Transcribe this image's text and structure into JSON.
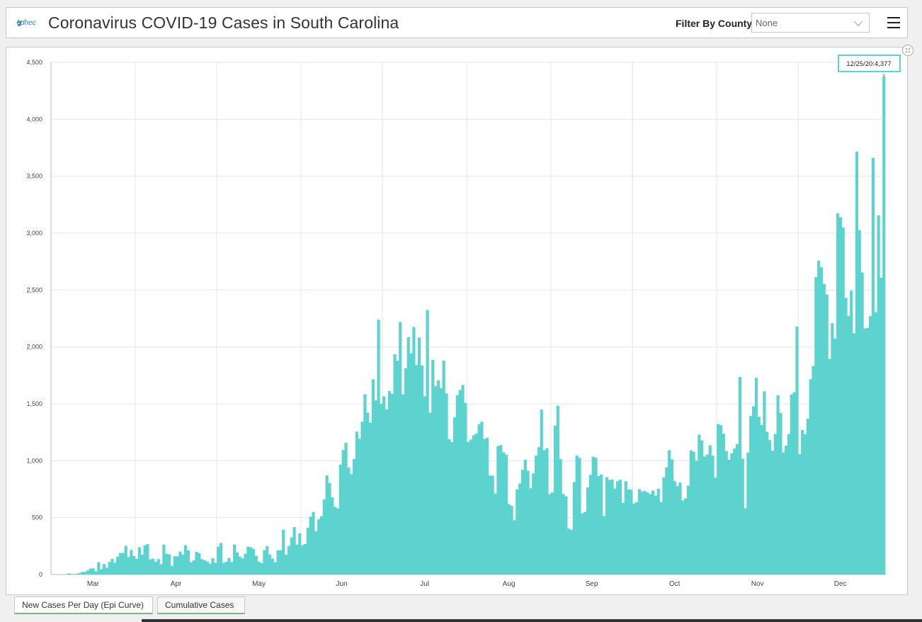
{
  "header": {
    "logo_text": "dhec",
    "title": "Coronavirus COVID-19 Cases in South Carolina",
    "filter_label": "Filter By County",
    "filter_value": "None"
  },
  "tabs": [
    {
      "label": "New Cases Per Day (Epi Curve)",
      "active": true
    },
    {
      "label": "Cumulative Cases",
      "active": false
    }
  ],
  "colors": {
    "bar": "#5dd3cf",
    "tooltip_border": "#5dd3cf",
    "grid": "#e6e6e6"
  },
  "icons": {
    "menu": "hamburger-menu-icon",
    "collapse": "collapse-icon",
    "dropdown": "chevron-down-icon"
  },
  "tooltip": "12/25/20:4,377",
  "chart_data": {
    "type": "bar",
    "title": "",
    "xlabel": "",
    "ylabel": "",
    "ylim": [
      0,
      4500
    ],
    "yticks": [
      "0",
      "500",
      "1,000",
      "1,500",
      "2,000",
      "2,500",
      "3,000",
      "3,500",
      "4,000",
      "4,500"
    ],
    "xticks": [
      "Mar",
      "Apr",
      "May",
      "Jun",
      "Jul",
      "Aug",
      "Sep",
      "Oct",
      "Nov",
      "Dec"
    ],
    "grid": true,
    "start_date": "2020-03-01",
    "values": [
      0,
      0,
      0,
      0,
      0,
      2,
      10,
      6,
      1,
      8,
      12,
      23,
      23,
      38,
      53,
      54,
      28,
      108,
      47,
      92,
      60,
      110,
      137,
      104,
      158,
      190,
      190,
      253,
      153,
      216,
      162,
      138,
      240,
      175,
      257,
      268,
      133,
      140,
      112,
      137,
      91,
      264,
      182,
      177,
      75,
      161,
      159,
      202,
      174,
      258,
      213,
      109,
      124,
      199,
      188,
      135,
      125,
      114,
      95,
      144,
      102,
      243,
      277,
      103,
      112,
      147,
      110,
      264,
      193,
      157,
      141,
      182,
      245,
      240,
      226,
      164,
      112,
      100,
      214,
      250,
      177,
      140,
      107,
      213,
      214,
      395,
      174,
      252,
      325,
      416,
      263,
      361,
      257,
      268,
      411,
      508,
      549,
      379,
      485,
      513,
      659,
      871,
      805,
      680,
      594,
      580,
      966,
      1094,
      1158,
      941,
      883,
      1016,
      1255,
      1193,
      1343,
      1584,
      1422,
      1334,
      1716,
      1530,
      2239,
      1500,
      1566,
      1450,
      1612,
      1588,
      1936,
      1879,
      2218,
      1583,
      1813,
      2085,
      1942,
      2175,
      1841,
      2082,
      1836,
      1566,
      2324,
      1422,
      1887,
      1655,
      1706,
      1638,
      1880,
      1591,
      1190,
      1164,
      1381,
      1576,
      1621,
      1666,
      1507,
      1164,
      1186,
      1224,
      1239,
      1321,
      1343,
      1192,
      1201,
      870,
      868,
      712,
      1129,
      1138,
      1074,
      1054,
      618,
      604,
      477,
      748,
      800,
      920,
      1009,
      913,
      757,
      889,
      1045,
      1119,
      1449,
      1092,
      1109,
      706,
      721,
      1308,
      1483,
      1015,
      707,
      687,
      403,
      392,
      813,
      1047,
      1025,
      539,
      550,
      766,
      876,
      1035,
      1026,
      865,
      880,
      514,
      856,
      831,
      835,
      756,
      821,
      833,
      629,
      820,
      749,
      745,
      622,
      636,
      749,
      728,
      735,
      721,
      707,
      738,
      694,
      754,
      636,
      853,
      942,
      1093,
      1012,
      821,
      776,
      808,
      650,
      669,
      781,
      1091,
      1079,
      999,
      1229,
      1178,
      1037,
      1054,
      1136,
      1045,
      851,
      1322,
      1312,
      1237,
      1085,
      1008,
      1066,
      1107,
      1146,
      1736,
      1018,
      582,
      1071,
      1393,
      1478,
      1729,
      1386,
      1315,
      1610,
      1254,
      1181,
      1087,
      1235,
      1575,
      1420,
      1072,
      1132,
      1234,
      1582,
      1600,
      2178,
      1057,
      1270,
      1232,
      1368,
      1716,
      1832,
      2613,
      2759,
      2699,
      2552,
      2461,
      1893,
      2208,
      2073,
      3173,
      3139,
      3049,
      2431,
      2271,
      2494,
      2120,
      3716,
      3026,
      2654,
      2162,
      2167,
      2269,
      3662,
      2304,
      3157,
      2609,
      4377
    ]
  }
}
